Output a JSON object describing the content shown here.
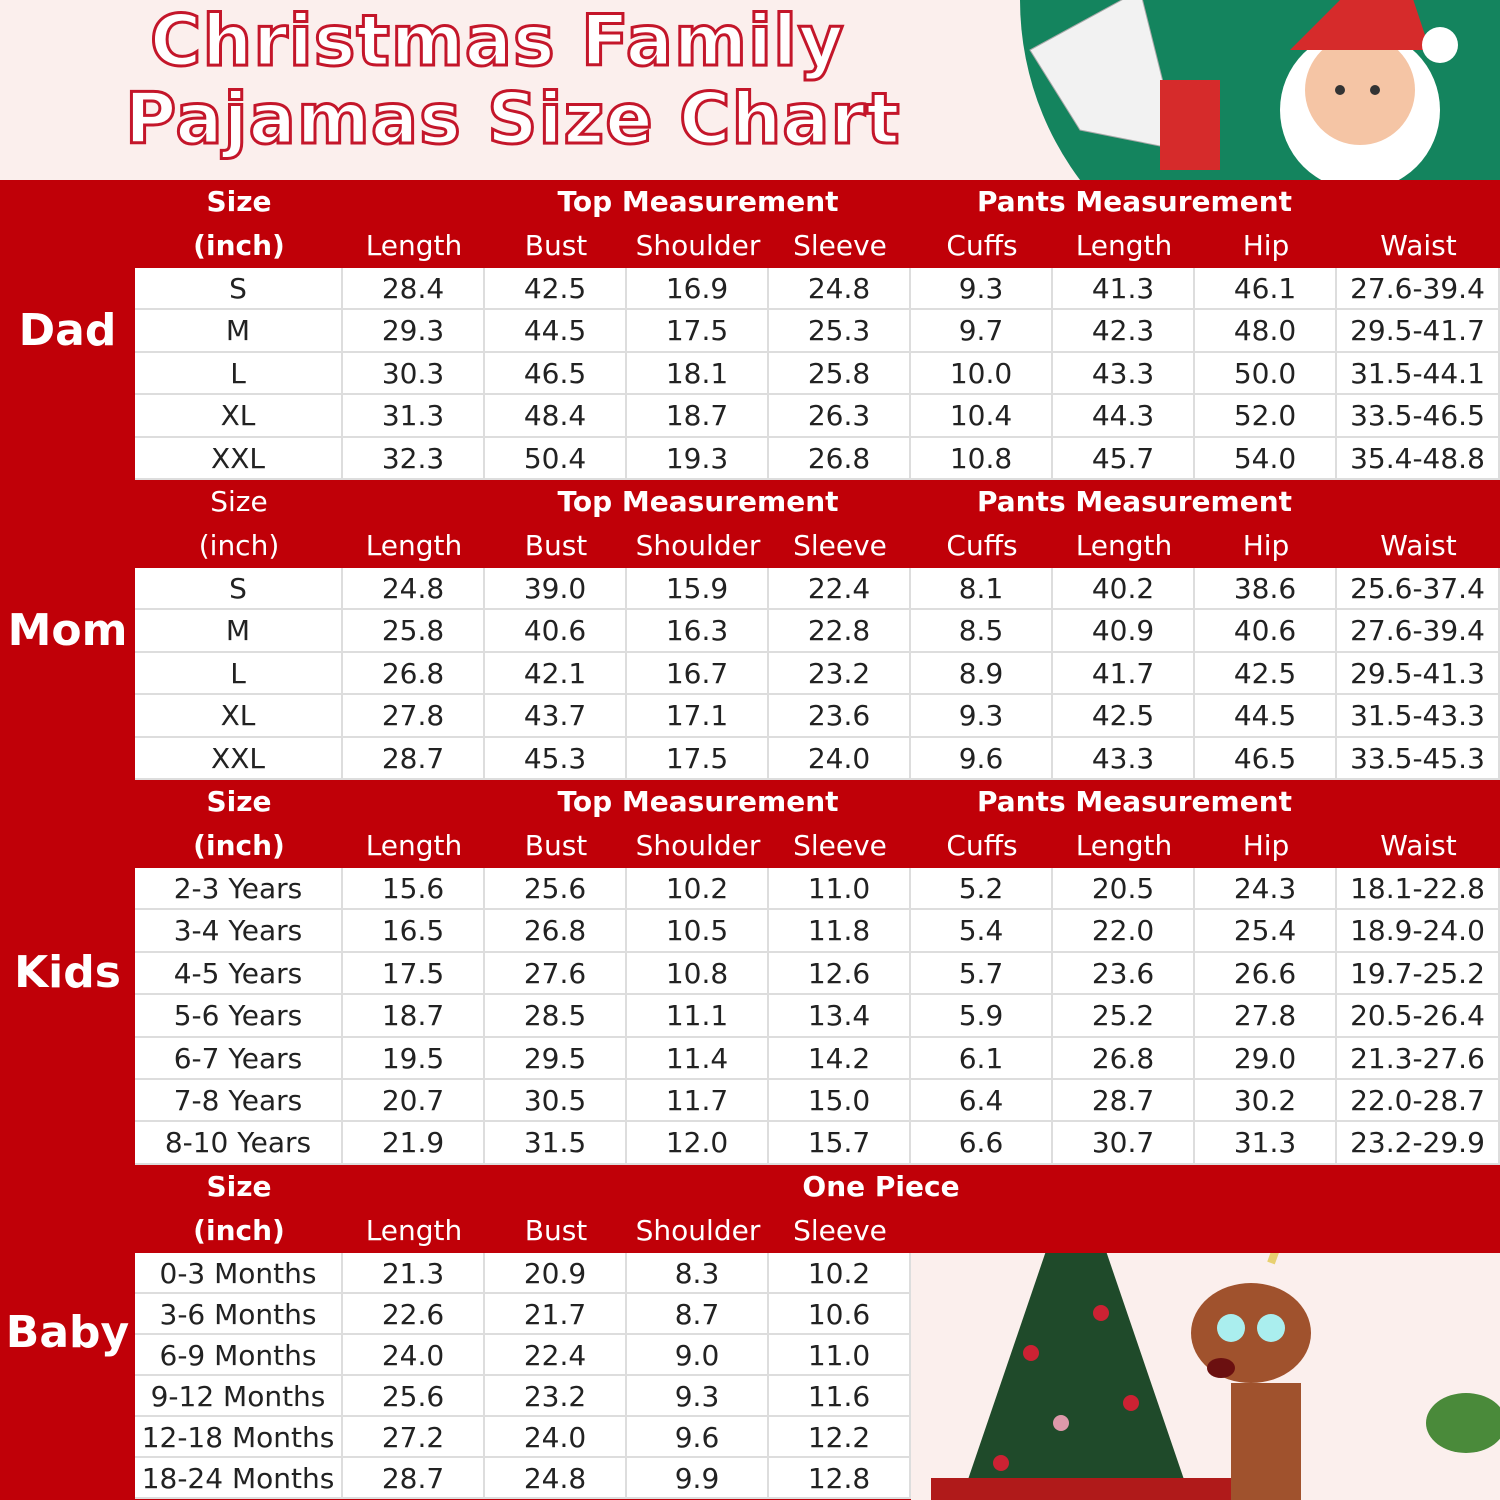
{
  "title": {
    "line1": "Christmas Family",
    "line2": "Pajamas Size Chart"
  },
  "colors": {
    "red": "#c00008",
    "header_bg": "#fbefed"
  },
  "sections": [
    {
      "label": "Dad",
      "size_header": [
        "Size",
        "(inch)"
      ],
      "group_top": "Top Measurement",
      "group_pants": "Pants Measurement",
      "columns": [
        "Length",
        "Bust",
        "Shoulder",
        "Sleeve",
        "Cuffs",
        "Length",
        "Hip",
        "Waist"
      ],
      "rows": [
        [
          "S",
          "28.4",
          "42.5",
          "16.9",
          "24.8",
          "9.3",
          "41.3",
          "46.1",
          "27.6-39.4"
        ],
        [
          "M",
          "29.3",
          "44.5",
          "17.5",
          "25.3",
          "9.7",
          "42.3",
          "48.0",
          "29.5-41.7"
        ],
        [
          "L",
          "30.3",
          "46.5",
          "18.1",
          "25.8",
          "10.0",
          "43.3",
          "50.0",
          "31.5-44.1"
        ],
        [
          "XL",
          "31.3",
          "48.4",
          "18.7",
          "26.3",
          "10.4",
          "44.3",
          "52.0",
          "33.5-46.5"
        ],
        [
          "XXL",
          "32.3",
          "50.4",
          "19.3",
          "26.8",
          "10.8",
          "45.7",
          "54.0",
          "35.4-48.8"
        ]
      ]
    },
    {
      "label": "Mom",
      "size_header": [
        "Size",
        "(inch)"
      ],
      "group_top": "Top Measurement",
      "group_pants": "Pants Measurement",
      "columns": [
        "Length",
        "Bust",
        "Shoulder",
        "Sleeve",
        "Cuffs",
        "Length",
        "Hip",
        "Waist"
      ],
      "rows": [
        [
          "S",
          "24.8",
          "39.0",
          "15.9",
          "22.4",
          "8.1",
          "40.2",
          "38.6",
          "25.6-37.4"
        ],
        [
          "M",
          "25.8",
          "40.6",
          "16.3",
          "22.8",
          "8.5",
          "40.9",
          "40.6",
          "27.6-39.4"
        ],
        [
          "L",
          "26.8",
          "42.1",
          "16.7",
          "23.2",
          "8.9",
          "41.7",
          "42.5",
          "29.5-41.3"
        ],
        [
          "XL",
          "27.8",
          "43.7",
          "17.1",
          "23.6",
          "9.3",
          "42.5",
          "44.5",
          "31.5-43.3"
        ],
        [
          "XXL",
          "28.7",
          "45.3",
          "17.5",
          "24.0",
          "9.6",
          "43.3",
          "46.5",
          "33.5-45.3"
        ]
      ]
    },
    {
      "label": "Kids",
      "size_header": [
        "Size",
        "(inch)"
      ],
      "group_top": "Top Measurement",
      "group_pants": "Pants Measurement",
      "columns": [
        "Length",
        "Bust",
        "Shoulder",
        "Sleeve",
        "Cuffs",
        "Length",
        "Hip",
        "Waist"
      ],
      "rows": [
        [
          "2-3 Years",
          "15.6",
          "25.6",
          "10.2",
          "11.0",
          "5.2",
          "20.5",
          "24.3",
          "18.1-22.8"
        ],
        [
          "3-4 Years",
          "16.5",
          "26.8",
          "10.5",
          "11.8",
          "5.4",
          "22.0",
          "25.4",
          "18.9-24.0"
        ],
        [
          "4-5 Years",
          "17.5",
          "27.6",
          "10.8",
          "12.6",
          "5.7",
          "23.6",
          "26.6",
          "19.7-25.2"
        ],
        [
          "5-6 Years",
          "18.7",
          "28.5",
          "11.1",
          "13.4",
          "5.9",
          "25.2",
          "27.8",
          "20.5-26.4"
        ],
        [
          "6-7 Years",
          "19.5",
          "29.5",
          "11.4",
          "14.2",
          "6.1",
          "26.8",
          "29.0",
          "21.3-27.6"
        ],
        [
          "7-8 Years",
          "20.7",
          "30.5",
          "11.7",
          "15.0",
          "6.4",
          "28.7",
          "30.2",
          "22.0-28.7"
        ],
        [
          "8-10 Years",
          "21.9",
          "31.5",
          "12.0",
          "15.7",
          "6.6",
          "30.7",
          "31.3",
          "23.2-29.9"
        ]
      ]
    },
    {
      "label": "Baby",
      "size_header": [
        "Size",
        "(inch)"
      ],
      "group_top": "One Piece",
      "columns": [
        "Length",
        "Bust",
        "Shoulder",
        "Sleeve"
      ],
      "rows": [
        [
          "0-3 Months",
          "21.3",
          "20.9",
          "8.3",
          "10.2"
        ],
        [
          "3-6 Months",
          "22.6",
          "21.7",
          "8.7",
          "10.6"
        ],
        [
          "6-9 Months",
          "24.0",
          "22.4",
          "9.0",
          "11.0"
        ],
        [
          "9-12 Months",
          "25.6",
          "23.2",
          "9.3",
          "11.6"
        ],
        [
          "12-18 Months",
          "27.2",
          "24.0",
          "9.6",
          "12.2"
        ],
        [
          "18-24 Months",
          "28.7",
          "24.8",
          "9.9",
          "12.8"
        ]
      ]
    }
  ]
}
